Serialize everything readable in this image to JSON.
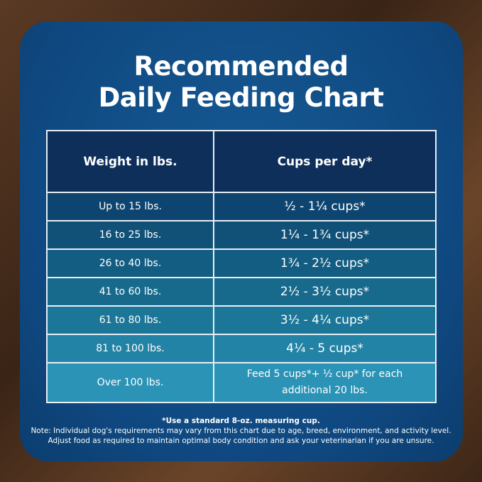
{
  "title_line1": "Recommended",
  "title_line2": "Daily Feeding Chart",
  "headers": [
    "Weight in lbs.",
    "Cups per day*"
  ],
  "rows": [
    {
      "weight": "Up to 15 lbs.",
      "cups": "½ - 1¼ cups*"
    },
    {
      "weight": "16 to 25 lbs.",
      "cups": "1¼ - 1¾  cups*"
    },
    {
      "weight": "26 to 40 lbs.",
      "cups": "1¾ - 2½ cups*"
    },
    {
      "weight": "41 to 60 lbs.",
      "cups": "2½ - 3½ cups*"
    },
    {
      "weight": "61 to 80 lbs.",
      "cups": "3½ - 4¼ cups*"
    },
    {
      "weight": "81 to 100 lbs.",
      "cups": "4¼ - 5 cups*"
    },
    {
      "weight": "Over 100 lbs.",
      "cups": "Feed 5 cups*+ ½ cup* for each additional 20 lbs."
    }
  ],
  "row_colors": [
    "#0e4570",
    "#115178",
    "#145d82",
    "#186a8c",
    "#1c7698",
    "#2383a6",
    "#2b93b6"
  ],
  "footnote": "*Use a standard 8-oz. measuring cup.",
  "note_line1": "Note: Individual dog's requirements may vary from this chart due to age, breed, environment, and activity level.",
  "note_line2": "Adjust food as required to maintain optimal body condition and ask your veterinarian if you are unsure."
}
